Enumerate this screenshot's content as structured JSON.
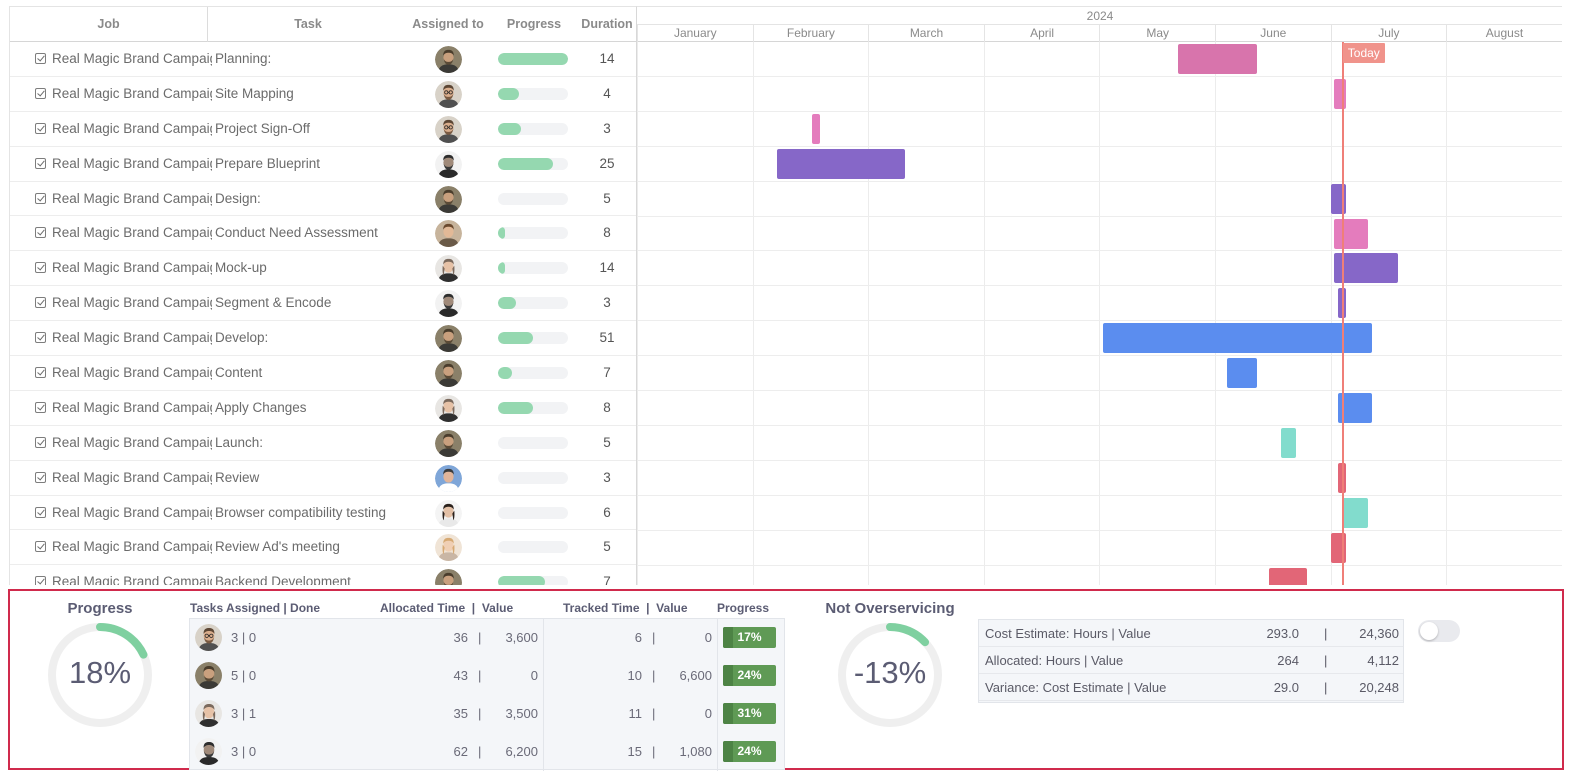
{
  "grid": {
    "headers": {
      "job": "Job",
      "task": "Task",
      "assigned": "Assigned to",
      "progress": "Progress",
      "duration": "Duration"
    },
    "rows": [
      {
        "job": "Real Magic Brand Campaign",
        "task": "Planning:",
        "avatar": "man-bearded",
        "progress": 100,
        "duration": "14"
      },
      {
        "job": "Real Magic Brand Campaign",
        "task": "Site Mapping",
        "avatar": "man-glasses",
        "progress": 30,
        "duration": "4"
      },
      {
        "job": "Real Magic Brand Campaign",
        "task": "Project Sign-Off",
        "avatar": "man-glasses",
        "progress": 33,
        "duration": "3"
      },
      {
        "job": "Real Magic Brand Campaign",
        "task": "Prepare Blueprint",
        "avatar": "man-dark",
        "progress": 78,
        "duration": "25"
      },
      {
        "job": "Real Magic Brand Campaign",
        "task": "Design:",
        "avatar": "man-bearded",
        "progress": 0,
        "duration": "5"
      },
      {
        "job": "Real Magic Brand Campaign",
        "task": "Conduct Need Assessment",
        "avatar": "man-young",
        "progress": 10,
        "duration": "8"
      },
      {
        "job": "Real Magic Brand Campaign",
        "task": "Mock-up",
        "avatar": "woman-short",
        "progress": 5,
        "duration": "14"
      },
      {
        "job": "Real Magic Brand Campaign",
        "task": "Segment & Encode",
        "avatar": "man-dark",
        "progress": 25,
        "duration": "3"
      },
      {
        "job": "Real Magic Brand Campaign",
        "task": "Develop:",
        "avatar": "man-bearded",
        "progress": 50,
        "duration": "51"
      },
      {
        "job": "Real Magic Brand Campaign",
        "task": "Content",
        "avatar": "man-bearded",
        "progress": 20,
        "duration": "7"
      },
      {
        "job": "Real Magic Brand Campaign",
        "task": "Apply Changes",
        "avatar": "woman-short",
        "progress": 50,
        "duration": "8"
      },
      {
        "job": "Real Magic Brand Campaign",
        "task": "Launch:",
        "avatar": "man-bearded",
        "progress": 0,
        "duration": "5"
      },
      {
        "job": "Real Magic Brand Campaign",
        "task": "Review",
        "avatar": "man-blue",
        "progress": 0,
        "duration": "3"
      },
      {
        "job": "Real Magic Brand Campaign",
        "task": "Browser compatibility testing",
        "avatar": "woman-dark",
        "progress": 0,
        "duration": "6"
      },
      {
        "job": "Real Magic Brand Campaign",
        "task": "Review Ad's meeting",
        "avatar": "woman-blonde",
        "progress": 0,
        "duration": "5"
      },
      {
        "job": "Real Magic Brand Campaign",
        "task": "Backend Development",
        "avatar": "man-bearded",
        "progress": 67,
        "duration": "7"
      }
    ]
  },
  "gantt": {
    "year": "2024",
    "months": [
      "January",
      "February",
      "March",
      "April",
      "May",
      "June",
      "July",
      "August"
    ],
    "today_label": "Today",
    "today_date": "2024-07-04",
    "colors": {
      "pink": "#d874ac",
      "pink2": "#e47cbd",
      "purple": "#8667c8",
      "blue": "#5b8def",
      "teal": "#82dccd",
      "red": "#e26677"
    },
    "bars": [
      {
        "row": 0,
        "start": "2024-05-22",
        "end": "2024-06-12",
        "color": "pink"
      },
      {
        "row": 1,
        "start": "2024-07-02",
        "end": "2024-07-05",
        "color": "pink2"
      },
      {
        "row": 2,
        "start": "2024-02-16",
        "end": "2024-02-18",
        "color": "pink2"
      },
      {
        "row": 3,
        "start": "2024-02-07",
        "end": "2024-03-11",
        "color": "purple"
      },
      {
        "row": 4,
        "start": "2024-07-01",
        "end": "2024-07-05",
        "color": "purple"
      },
      {
        "row": 5,
        "start": "2024-07-02",
        "end": "2024-07-11",
        "color": "pink2"
      },
      {
        "row": 6,
        "start": "2024-07-02",
        "end": "2024-07-19",
        "color": "purple"
      },
      {
        "row": 7,
        "start": "2024-07-03",
        "end": "2024-07-05",
        "color": "purple"
      },
      {
        "row": 8,
        "start": "2024-05-02",
        "end": "2024-07-12",
        "color": "blue"
      },
      {
        "row": 9,
        "start": "2024-06-04",
        "end": "2024-06-12",
        "color": "blue"
      },
      {
        "row": 10,
        "start": "2024-07-03",
        "end": "2024-07-12",
        "color": "blue"
      },
      {
        "row": 11,
        "start": "2024-06-18",
        "end": "2024-06-22",
        "color": "teal"
      },
      {
        "row": 12,
        "start": "2024-07-03",
        "end": "2024-07-05",
        "color": "red"
      },
      {
        "row": 13,
        "start": "2024-07-04",
        "end": "2024-07-11",
        "color": "teal"
      },
      {
        "row": 14,
        "start": "2024-07-01",
        "end": "2024-07-05",
        "color": "red"
      },
      {
        "row": 15,
        "start": "2024-06-15",
        "end": "2024-06-25",
        "color": "red"
      }
    ]
  },
  "summary": {
    "progress_title": "Progress",
    "progress_value": "18%",
    "progress_pct": 18,
    "headers": {
      "tasks": "Tasks Assigned | Done",
      "allocated": "Allocated Time  |  Value",
      "tracked": "Tracked Time  |  Value",
      "progress": "Progress"
    },
    "rows": [
      {
        "avatar": "man-glasses",
        "tasks": "3 | 0",
        "alloc_time": "36",
        "alloc_value": "3,600",
        "tracked_time": "6",
        "tracked_value": "0",
        "progress": "17%"
      },
      {
        "avatar": "man-bearded",
        "tasks": "5 | 0",
        "alloc_time": "43",
        "alloc_value": "0",
        "tracked_time": "10",
        "tracked_value": "6,600",
        "progress": "24%"
      },
      {
        "avatar": "woman-short",
        "tasks": "3 | 1",
        "alloc_time": "35",
        "alloc_value": "3,500",
        "tracked_time": "11",
        "tracked_value": "0",
        "progress": "31%"
      },
      {
        "avatar": "man-dark",
        "tasks": "3 | 0",
        "alloc_time": "62",
        "alloc_value": "6,200",
        "tracked_time": "15",
        "tracked_value": "1,080",
        "progress": "24%"
      }
    ],
    "sep": "|",
    "overservicing_title": "Not Overservicing",
    "overservicing_value": "-13%",
    "overservicing_pct": 13,
    "cost_rows": [
      {
        "label": "Cost Estimate: Hours | Value",
        "hours": "293.0",
        "value": "24,360"
      },
      {
        "label": "Allocated: Hours | Value",
        "hours": "264",
        "value": "4,112"
      },
      {
        "label": "Variance: Cost Estimate | Value",
        "hours": "29.0",
        "value": "20,248"
      }
    ],
    "toggle_on": false
  }
}
